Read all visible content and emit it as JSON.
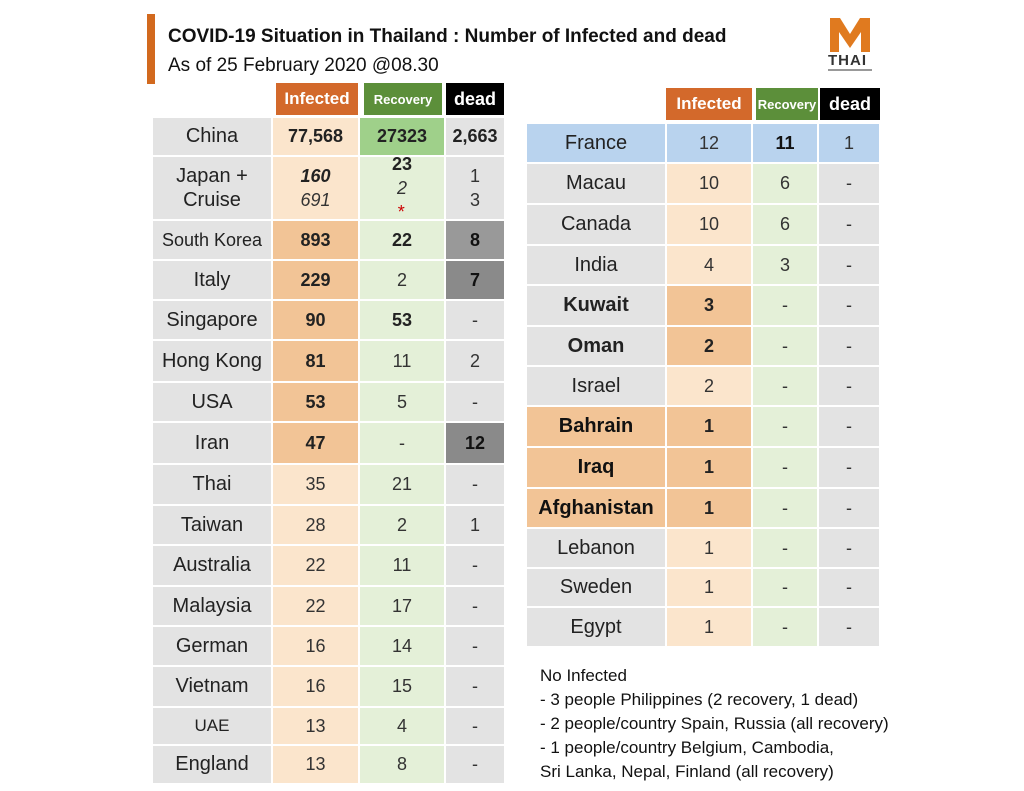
{
  "title": "COVID-19 Situation in Thailand : Number of Infected and dead",
  "subtitle": "As of 25 February 2020 @08.30",
  "logo": {
    "text": "THAI",
    "icon": "m-logo",
    "color": "#e07a1f"
  },
  "headers": {
    "infected": "Infected",
    "recovery": "Recovery",
    "dead": "dead"
  },
  "colors": {
    "infected": "#d3692b",
    "recovery": "#5c8f3a",
    "dead": "#000000",
    "accent": "#d2691e"
  },
  "left_table": [
    {
      "country": "China",
      "infected": "77,568",
      "recovery": "27323",
      "dead": "2,663"
    },
    {
      "country": "Japan +",
      "country2": "Cruise",
      "infected": "160",
      "infected2": "691",
      "recovery": "23",
      "recovery2": "2",
      "recovery2_mark": "*",
      "dead": "1",
      "dead2": "3"
    },
    {
      "country": "South Korea",
      "infected": "893",
      "recovery": "22",
      "dead": "8"
    },
    {
      "country": "Italy",
      "infected": "229",
      "recovery": "2",
      "dead": "7"
    },
    {
      "country": "Singapore",
      "infected": "90",
      "recovery": "53",
      "dead": "-"
    },
    {
      "country": "Hong Kong",
      "infected": "81",
      "recovery": "11",
      "dead": "2"
    },
    {
      "country": "USA",
      "infected": "53",
      "recovery": "5",
      "dead": "-"
    },
    {
      "country": "Iran",
      "infected": "47",
      "recovery": "-",
      "dead": "12"
    },
    {
      "country": "Thai",
      "infected": "35",
      "recovery": "21",
      "dead": "-"
    },
    {
      "country": "Taiwan",
      "infected": "28",
      "recovery": "2",
      "dead": "1"
    },
    {
      "country": "Australia",
      "infected": "22",
      "recovery": "11",
      "dead": "-"
    },
    {
      "country": "Malaysia",
      "infected": "22",
      "recovery": "17",
      "dead": "-"
    },
    {
      "country": "German",
      "infected": "16",
      "recovery": "14",
      "dead": "-"
    },
    {
      "country": "Vietnam",
      "infected": "16",
      "recovery": "15",
      "dead": "-"
    },
    {
      "country": "UAE",
      "infected": "13",
      "recovery": "4",
      "dead": "-"
    },
    {
      "country": "England",
      "infected": "13",
      "recovery": "8",
      "dead": "-"
    }
  ],
  "right_table": [
    {
      "country": "France",
      "infected": "12",
      "recovery": "11",
      "dead": "1"
    },
    {
      "country": "Macau",
      "infected": "10",
      "recovery": "6",
      "dead": "-"
    },
    {
      "country": "Canada",
      "infected": "10",
      "recovery": "6",
      "dead": "-"
    },
    {
      "country": "India",
      "infected": "4",
      "recovery": "3",
      "dead": "-"
    },
    {
      "country": "Kuwait",
      "infected": "3",
      "recovery": "-",
      "dead": "-"
    },
    {
      "country": "Oman",
      "infected": "2",
      "recovery": "-",
      "dead": "-"
    },
    {
      "country": "Israel",
      "infected": "2",
      "recovery": "-",
      "dead": "-"
    },
    {
      "country": "Bahrain",
      "infected": "1",
      "recovery": "-",
      "dead": "-"
    },
    {
      "country": "Iraq",
      "infected": "1",
      "recovery": "-",
      "dead": "-"
    },
    {
      "country": "Afghanistan",
      "infected": "1",
      "recovery": "-",
      "dead": "-"
    },
    {
      "country": "Lebanon",
      "infected": "1",
      "recovery": "-",
      "dead": "-"
    },
    {
      "country": "Sweden",
      "infected": "1",
      "recovery": "-",
      "dead": "-"
    },
    {
      "country": "Egypt",
      "infected": "1",
      "recovery": "-",
      "dead": "-"
    }
  ],
  "notes": [
    "No Infected",
    "- 3 people Philippines (2 recovery, 1 dead)",
    "- 2 people/country Spain, Russia (all recovery)",
    "- 1 people/country Belgium, Cambodia,",
    "Sri Lanka, Nepal, Finland (all recovery)"
  ]
}
